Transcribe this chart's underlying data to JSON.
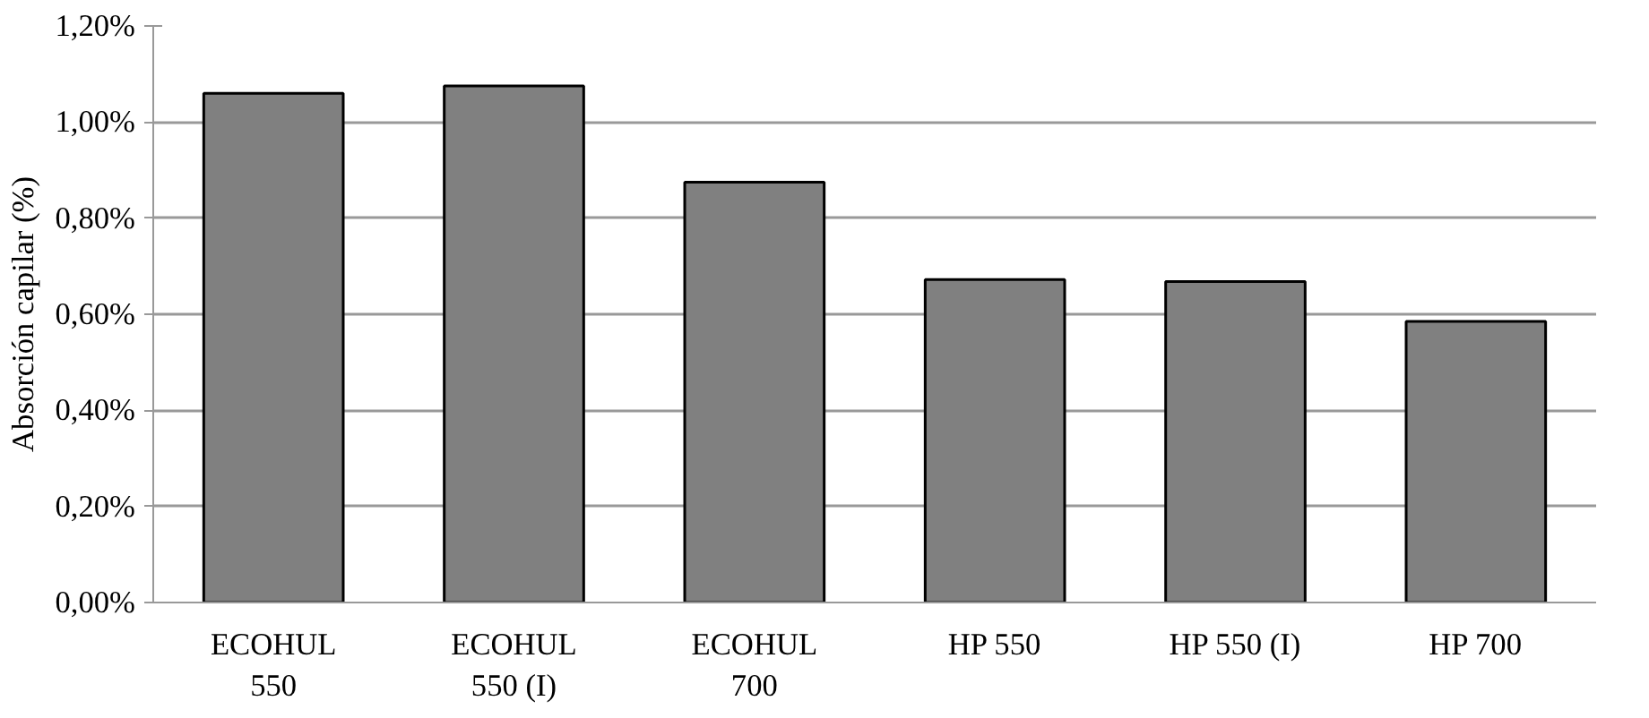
{
  "chart_data": {
    "type": "bar",
    "ylabel": "Absorción capilar (%)",
    "categories": [
      "ECOHUL\n550",
      "ECOHUL\n550 (I)",
      "ECOHUL\n700",
      "HP 550",
      "HP 550 (I)",
      "HP 700"
    ],
    "values": [
      1.06,
      1.075,
      0.875,
      0.672,
      0.668,
      0.585
    ],
    "color": "#808080",
    "ylim": [
      0,
      1.2
    ],
    "yticks": [
      {
        "value": 0,
        "label": "0,00%"
      },
      {
        "value": 0.2,
        "label": "0,20%"
      },
      {
        "value": 0.4,
        "label": "0,40%"
      },
      {
        "value": 0.6,
        "label": "0,60%"
      },
      {
        "value": 0.8,
        "label": "0,80%"
      },
      {
        "value": 1.0,
        "label": "1,00%"
      },
      {
        "value": 1.2,
        "label": "1,20%"
      }
    ],
    "grid": "y"
  }
}
